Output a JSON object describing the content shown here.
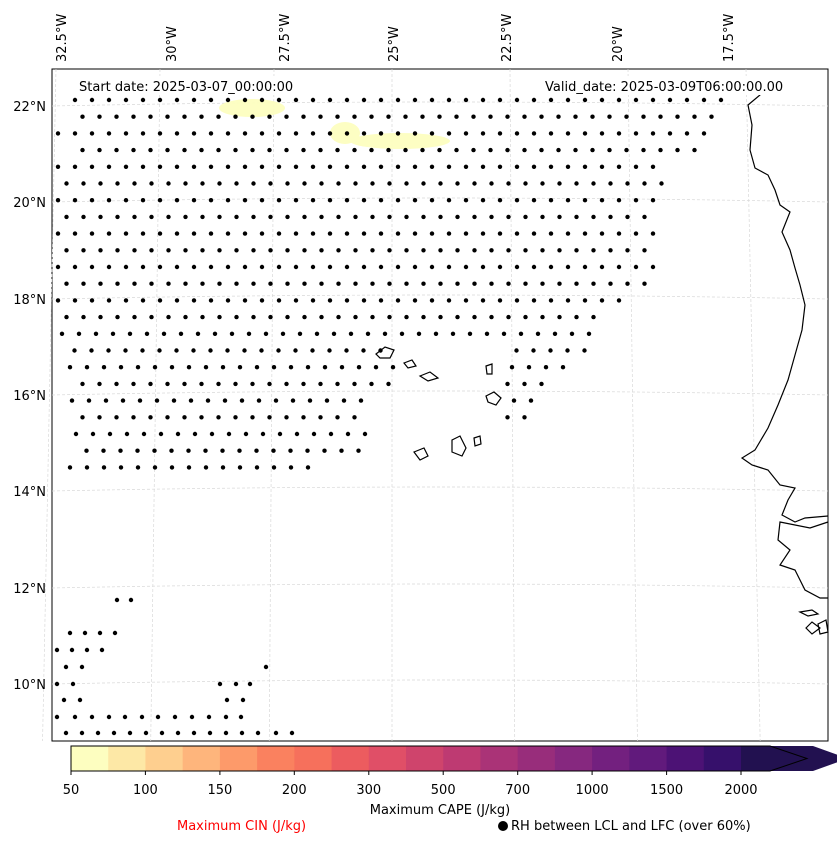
{
  "map": {
    "start_date": "Start date: 2025-03-07_00:00:00",
    "valid_date": "Valid_date: 2025-03-09T06:00:00.00",
    "lon_labels": [
      "32.5°W",
      "30°W",
      "27.5°W",
      "25°W",
      "22.5°W",
      "20°W",
      "17.5°W"
    ],
    "lat_labels": [
      "22°N",
      "20°N",
      "18°N",
      "16°N",
      "14°N",
      "12°N",
      "10°N"
    ],
    "gridlines": true
  },
  "colorbar": {
    "label": "Maximum CAPE (J/kg)",
    "ticks": [
      "50",
      "100",
      "150",
      "200",
      "300",
      "500",
      "700",
      "1000",
      "1500",
      "2000"
    ],
    "colors": [
      "#fdfec0",
      "#fde8a6",
      "#fecf8f",
      "#feb57c",
      "#fd9a6a",
      "#fa815f",
      "#f6705c",
      "#ec5c5f",
      "#e04f67",
      "#cf446c",
      "#be3a72",
      "#aa3377",
      "#982d7b",
      "#86287f",
      "#73207f",
      "#611a7c",
      "#4c1275",
      "#36106b",
      "#221150"
    ]
  },
  "legend": {
    "cin_label": "Maximum CIN (J/kg)",
    "cin_color": "#ff0000",
    "rh_label": "RH between LCL and LFC (over 60%)",
    "rh_marker": "black-dot"
  }
}
